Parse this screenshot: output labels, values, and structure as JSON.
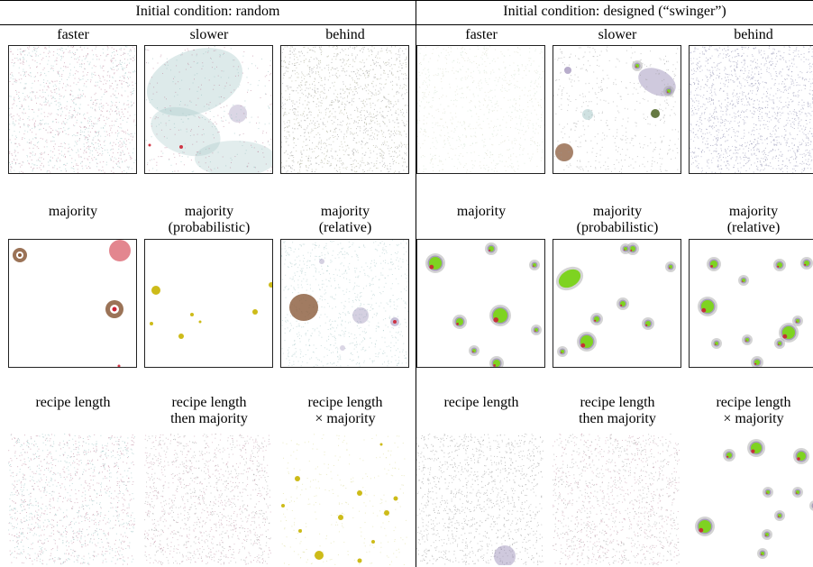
{
  "figure": {
    "groups": [
      {
        "title": "Initial condition: random"
      },
      {
        "title": "Initial condition: designed (“swinger”)"
      }
    ],
    "rows": [
      {
        "labels": [
          {
            "line1": "faster",
            "line2": ""
          },
          {
            "line1": "slower",
            "line2": ""
          },
          {
            "line1": "behind",
            "line2": ""
          },
          {
            "line1": "faster",
            "line2": ""
          },
          {
            "line1": "slower",
            "line2": ""
          },
          {
            "line1": "behind",
            "line2": ""
          }
        ]
      },
      {
        "labels": [
          {
            "line1": "majority",
            "line2": ""
          },
          {
            "line1": "majority",
            "line2": "(probabilistic)"
          },
          {
            "line1": "majority",
            "line2": "(relative)"
          },
          {
            "line1": "majority",
            "line2": ""
          },
          {
            "line1": "majority",
            "line2": "(probabilistic)"
          },
          {
            "line1": "majority",
            "line2": "(relative)"
          }
        ]
      },
      {
        "labels": [
          {
            "line1": "recipe length",
            "line2": ""
          },
          {
            "line1": "recipe length",
            "line2": "then majority"
          },
          {
            "line1": "recipe length",
            "line2": "× majority"
          },
          {
            "line1": "recipe length",
            "line2": ""
          },
          {
            "line1": "recipe length",
            "line2": "then majority"
          },
          {
            "line1": "recipe length",
            "line2": "× majority"
          }
        ]
      }
    ]
  },
  "colors": {
    "green": "#7ed321",
    "gold": "#c8b400",
    "red": "#cc2233",
    "purple": "#8877aa",
    "brown": "#8a5a3a",
    "halo": "#aaaaaa",
    "noise_teal": "#9fc4c4",
    "noise_pink": "#c08aa0",
    "noise_gray": "#999999"
  }
}
